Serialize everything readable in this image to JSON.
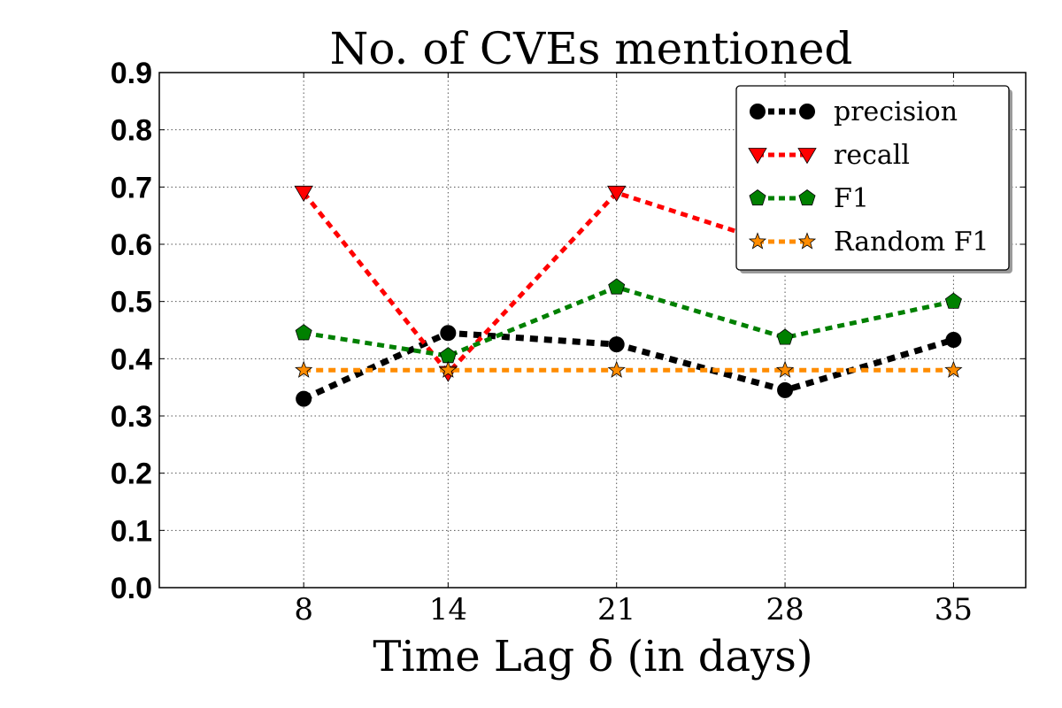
{
  "chart_data": {
    "type": "line",
    "title": "No. of CVEs mentioned",
    "xlabel": "Time Lag δ (in days)",
    "ylabel": "",
    "x": [
      8,
      14,
      21,
      28,
      35
    ],
    "x_ticks": [
      "8",
      "14",
      "21",
      "28",
      "35"
    ],
    "xlim": [
      2,
      38
    ],
    "ylim": [
      0.0,
      0.9
    ],
    "y_ticks": [
      "0.0",
      "0.1",
      "0.2",
      "0.3",
      "0.4",
      "0.5",
      "0.6",
      "0.7",
      "0.8",
      "0.9"
    ],
    "grid": true,
    "legend_position": "top-right",
    "series": [
      {
        "name": "precision",
        "values": [
          0.33,
          0.445,
          0.425,
          0.345,
          0.433
        ],
        "color": "#000000",
        "marker": "circle"
      },
      {
        "name": "recall",
        "values": [
          0.69,
          0.375,
          0.69,
          0.595,
          0.595
        ],
        "color": "#ff0000",
        "marker": "triangle-down"
      },
      {
        "name": "F1",
        "values": [
          0.445,
          0.405,
          0.525,
          0.437,
          0.5
        ],
        "color": "#008000",
        "marker": "pentagon"
      },
      {
        "name": "Random F1",
        "values": [
          0.38,
          0.38,
          0.38,
          0.38,
          0.38
        ],
        "color": "#ff8c00",
        "marker": "star"
      }
    ]
  }
}
